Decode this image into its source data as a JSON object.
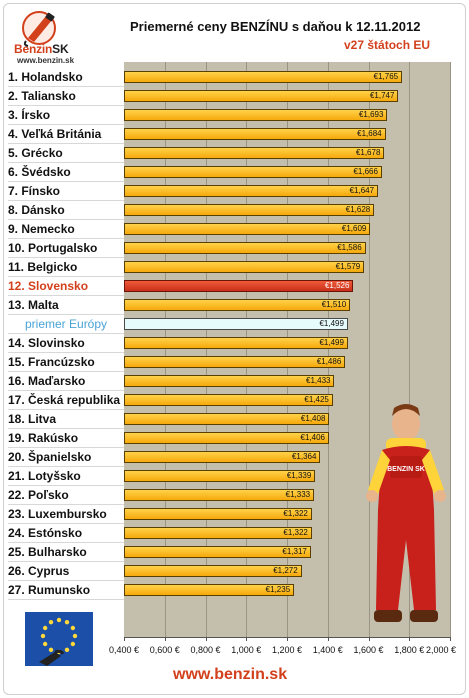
{
  "header": {
    "logo_text": "Benzin",
    "logo_text_suffix": "SK",
    "logo_url": "www.benzin.sk",
    "title": "Priemerné ceny BENZÍNU s daňou k 12.11.2012",
    "subtitle": "v27 štátoch EU"
  },
  "footer": {
    "url": "www.benzin.sk"
  },
  "colors": {
    "bar": "#f6a90c",
    "highlight": "#c8301a",
    "average": "#e6fcfc",
    "plot_background": "#c4beac",
    "accent_text": "#d2401c"
  },
  "icons": {
    "logo": "benzin-logo-icon",
    "flag": "eu-flag-icon",
    "mascot": "mechanic-mascot-icon"
  },
  "chart_data": {
    "type": "bar",
    "orientation": "horizontal",
    "title": "Priemerné ceny BENZÍNU s daňou k 12.11.2012",
    "subtitle": "v27 štátoch EU",
    "xlim": [
      0.4,
      2.0
    ],
    "x_ticks": [
      "0,400 €",
      "0,600 €",
      "0,800 €",
      "1,000 €",
      "1,200 €",
      "1,400 €",
      "1,600 €",
      "1,800 €",
      "2,000 €"
    ],
    "x_tick_values": [
      0.4,
      0.6,
      0.8,
      1.0,
      1.2,
      1.4,
      1.6,
      1.8,
      2.0
    ],
    "grid": true,
    "categories": [
      "1. Holandsko",
      "2. Taliansko",
      "3. Írsko",
      "4. Veľká Británia",
      "5. Grécko",
      "6. Švédsko",
      "7. Fínsko",
      "8. Dánsko",
      "9. Nemecko",
      "10. Portugalsko",
      "11. Belgicko",
      "12. Slovensko",
      "13. Malta",
      "priemer Európy",
      "14. Slovinsko",
      "15. Francúzsko",
      "16. Maďarsko",
      "17. Česká republika",
      "18. Litva",
      "19. Rakúsko",
      "20. Španielsko",
      "21. Lotyšsko",
      "22. Poľsko",
      "23. Luxembursko",
      "24. Estónsko",
      "25. Bulharsko",
      "26. Cyprus",
      "27. Rumunsko"
    ],
    "values": [
      1.765,
      1.747,
      1.693,
      1.684,
      1.678,
      1.666,
      1.647,
      1.628,
      1.609,
      1.586,
      1.579,
      1.526,
      1.51,
      1.499,
      1.499,
      1.486,
      1.433,
      1.425,
      1.408,
      1.406,
      1.364,
      1.339,
      1.333,
      1.322,
      1.322,
      1.317,
      1.272,
      1.235
    ],
    "value_labels": [
      "€1,765",
      "€1,747",
      "€1,693",
      "€1,684",
      "€1,678",
      "€1,666",
      "€1,647",
      "€1,628",
      "€1,609",
      "€1,586",
      "€1,579",
      "€1,526",
      "€1,510",
      "€1,499",
      "€1,499",
      "€1,486",
      "€1,433",
      "€1,425",
      "€1,408",
      "€1,406",
      "€1,364",
      "€1,339",
      "€1,333",
      "€1,322",
      "€1,322",
      "€1,317",
      "€1,272",
      "€1,235"
    ],
    "highlight_category": "12. Slovensko",
    "average_category": "priemer Európy"
  }
}
